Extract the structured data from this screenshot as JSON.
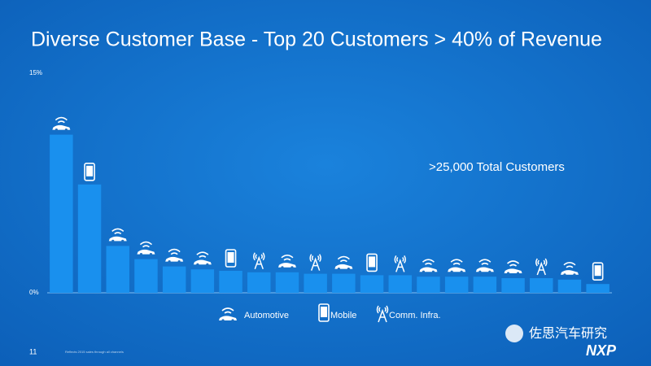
{
  "chart_data": {
    "type": "bar",
    "title": "Diverse Customer Base - Top 20 Customers > 40% of Revenue",
    "annotation": ">25,000 Total Customers",
    "page_number": "11",
    "footnote": "Reflects 2015 sales through all channels",
    "watermark": "佐思汽车研究",
    "logo": "NXP",
    "color": "#1990ee",
    "ylim": [
      0,
      15
    ],
    "yticks": [
      {
        "value": 0,
        "label": "0%"
      },
      {
        "value": 15,
        "label": "15%"
      }
    ],
    "series": [
      {
        "name": "Automotive",
        "icon": "car",
        "values": [
          10.8,
          null,
          3.2,
          2.3,
          1.8,
          1.6,
          null,
          null,
          1.4,
          null,
          1.3,
          null,
          null,
          1.1,
          1.1,
          1.1,
          1.0,
          null,
          0.9,
          null
        ]
      },
      {
        "name": "Mobile",
        "icon": "mobile",
        "values": [
          null,
          7.4,
          null,
          null,
          null,
          null,
          1.5,
          null,
          null,
          null,
          null,
          1.2,
          null,
          null,
          null,
          null,
          null,
          null,
          null,
          0.6
        ]
      },
      {
        "name": "Comm. Infra.",
        "icon": "tower",
        "values": [
          null,
          null,
          null,
          null,
          null,
          null,
          null,
          1.4,
          null,
          1.3,
          null,
          null,
          1.2,
          null,
          null,
          null,
          null,
          1.0,
          null,
          null
        ]
      }
    ]
  }
}
